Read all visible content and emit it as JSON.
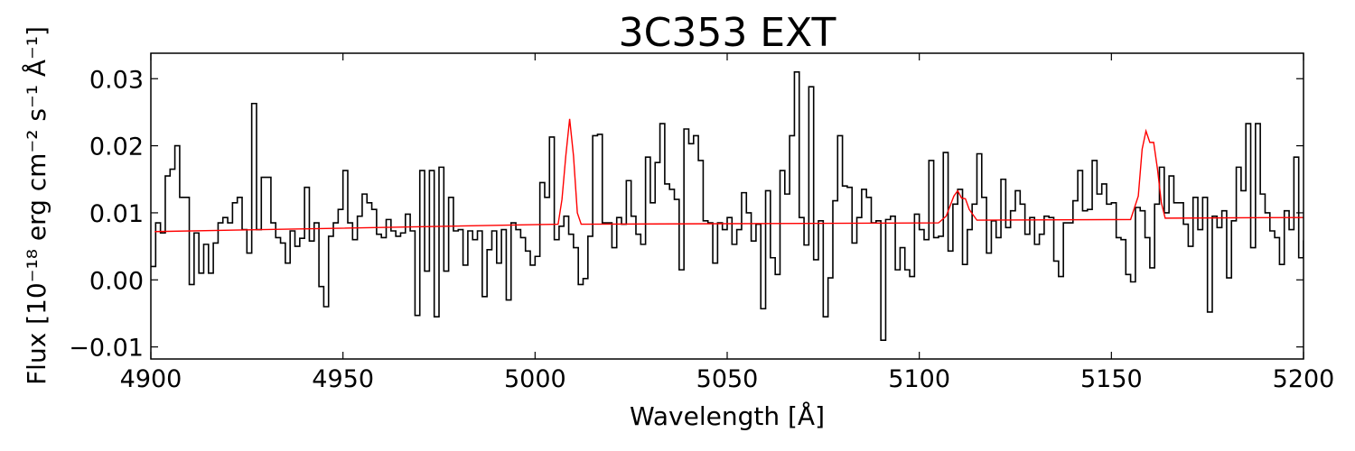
{
  "chart_data": {
    "type": "line",
    "title": "3C353 EXT",
    "xlabel": "Wavelength [Å]",
    "ylabel": "Flux [10⁻¹⁸ erg cm⁻² s⁻¹ Å⁻¹]",
    "xlim": [
      4900,
      5200
    ],
    "ylim": [
      -0.0118,
      0.0338
    ],
    "x_ticks": [
      4900,
      4950,
      5000,
      5050,
      5100,
      5150,
      5200
    ],
    "x_tick_labels": [
      "4900",
      "4950",
      "5000",
      "5050",
      "5100",
      "5150",
      "5200"
    ],
    "y_ticks": [
      -0.01,
      0.0,
      0.01,
      0.02,
      0.03
    ],
    "y_tick_labels": [
      "−0.01",
      "0.00",
      "0.01",
      "0.02",
      "0.03"
    ],
    "grid": false,
    "series": [
      {
        "style": "steps",
        "color": "#000000",
        "x_start": 4900,
        "x_step": 1.25,
        "values": [
          0.002,
          0.0085,
          0.007,
          0.0155,
          0.0165,
          0.02,
          0.0123,
          0.0123,
          -0.0007,
          0.007,
          0.001,
          0.0053,
          0.001,
          0.0055,
          0.0085,
          0.0093,
          0.0085,
          0.0115,
          0.0123,
          0.0075,
          0.004,
          0.0263,
          0.0075,
          0.0153,
          0.0153,
          0.0085,
          0.0063,
          0.0055,
          0.0025,
          0.0073,
          0.005,
          0.0062,
          0.0138,
          0.0058,
          0.0085,
          -0.001,
          -0.004,
          0.0065,
          0.0085,
          0.0105,
          0.0163,
          0.0085,
          0.006,
          0.0095,
          0.0128,
          0.0115,
          0.0105,
          0.0068,
          0.0063,
          0.009,
          0.0073,
          0.0065,
          0.007,
          0.0098,
          0.0073,
          -0.0053,
          0.0163,
          0.0013,
          0.0163,
          -0.0055,
          0.0168,
          0.0013,
          0.0123,
          0.0073,
          0.0075,
          0.0022,
          0.0073,
          0.006,
          0.0073,
          -0.0025,
          0.0045,
          0.0073,
          0.0025,
          0.0075,
          -0.003,
          0.0085,
          0.0075,
          0.0063,
          0.0043,
          0.0022,
          0.0035,
          0.0145,
          0.0123,
          0.0213,
          0.006,
          0.008,
          0.0095,
          0.0068,
          0.0048,
          -0.0007,
          0.0002,
          0.0065,
          0.0215,
          0.0217,
          0.0085,
          0.0085,
          0.0048,
          0.0093,
          0.0083,
          0.0148,
          0.0095,
          0.0068,
          0.0053,
          0.0183,
          0.0115,
          0.0175,
          0.0233,
          0.0143,
          0.0135,
          0.012,
          0.0015,
          0.0225,
          0.0203,
          0.0215,
          0.0178,
          0.0088,
          0.0085,
          0.0025,
          0.0085,
          0.0075,
          0.0093,
          0.0053,
          0.0075,
          0.013,
          0.01,
          0.0058,
          0.0083,
          -0.0043,
          0.0133,
          0.0033,
          0.0008,
          0.0163,
          0.0128,
          0.0215,
          0.031,
          0.0093,
          0.0052,
          0.0288,
          0.003,
          0.0088,
          -0.0055,
          0.0003,
          0.0118,
          0.0215,
          0.014,
          0.0138,
          0.0055,
          0.0093,
          0.0135,
          0.0123,
          0.0085,
          0.0088,
          -0.009,
          0.009,
          0.0095,
          0.0015,
          0.0048,
          0.0015,
          0.0005,
          0.0098,
          0.0075,
          0.006,
          0.0178,
          0.0063,
          0.0065,
          0.019,
          0.0043,
          0.0113,
          0.0135,
          0.0023,
          0.0075,
          0.0113,
          0.0188,
          0.0123,
          0.004,
          0.0088,
          0.0063,
          0.015,
          0.0078,
          0.0103,
          0.0133,
          0.0113,
          0.0068,
          0.0093,
          0.0053,
          0.0068,
          0.0095,
          0.0093,
          0.0028,
          0.0005,
          0.0085,
          0.0085,
          0.0118,
          0.0163,
          0.0103,
          0.0105,
          0.0178,
          0.0128,
          0.0143,
          0.0113,
          0.0115,
          0.0063,
          0.006,
          0.0008,
          -0.0003,
          0.0108,
          0.0103,
          0.0063,
          0.0018,
          0.0113,
          0.0168,
          0.01,
          0.0155,
          0.0115,
          0.0115,
          0.0083,
          0.005,
          0.0123,
          0.0075,
          0.0123,
          -0.0048,
          0.0095,
          0.0078,
          0.0103,
          0.0003,
          0.0088,
          0.0168,
          0.0133,
          0.0233,
          0.0048,
          0.0233,
          0.0128,
          0.01,
          0.0073,
          0.0063,
          0.0023,
          0.0103,
          0.0075,
          0.0183,
          0.0033,
          0.0058,
          0.0013,
          0.0098,
          0.0133,
          0.0035,
          0.0133,
          0.0115,
          0.0085,
          0.0143,
          0.0173,
          0.0053,
          0.0125,
          0.0163,
          0.0135,
          0.0243,
          0.0225,
          0.0218,
          0.0158,
          0.0105,
          0.0123,
          0.0053,
          0.0065,
          0.0053,
          0.0088,
          0.0113,
          0.0138,
          0.0095,
          0.0125,
          0.0168,
          0.0063,
          0.0183,
          0.0148,
          0.0033,
          0.0093,
          0.0103,
          0.0123,
          0.0173,
          0.0175,
          0.0213,
          0.0113,
          0.0085,
          -0.002,
          0.0095,
          0.0073,
          0.0065,
          0.0075,
          0.0045,
          0.0013,
          0.01,
          0.0143,
          0.009,
          0.005,
          0.0063,
          0.0073,
          -0.005,
          0.0005,
          0.0175
        ]
      },
      {
        "style": "line",
        "color": "#ff0000",
        "x": [
          4901,
          5006,
          5007,
          5008,
          5009,
          5010,
          5011,
          5012,
          5105,
          5107,
          5109,
          5110,
          5111,
          5112,
          5113,
          5115,
          5155,
          5157,
          5158,
          5159,
          5160,
          5161,
          5162,
          5163,
          5164,
          5200
        ],
        "y": [
          0.0072,
          0.0083,
          0.012,
          0.0185,
          0.024,
          0.0185,
          0.01,
          0.0083,
          0.0085,
          0.0095,
          0.0125,
          0.0133,
          0.0122,
          0.0121,
          0.0105,
          0.0089,
          0.009,
          0.0125,
          0.0195,
          0.0222,
          0.0205,
          0.0205,
          0.0165,
          0.0115,
          0.0092,
          0.0093
        ]
      }
    ]
  }
}
